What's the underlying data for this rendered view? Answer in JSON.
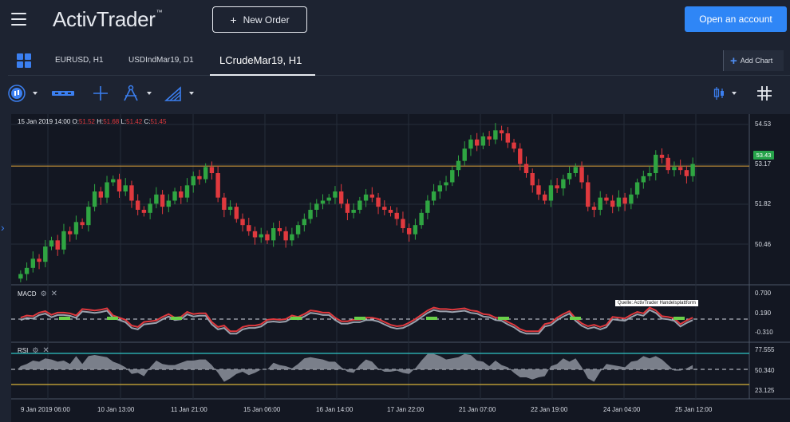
{
  "header": {
    "logo_text": "ActivTrader",
    "logo_mark": "™",
    "new_order_label": "New Order",
    "new_order_icon": "plus-icon",
    "open_account_label": "Open an account"
  },
  "tabs": [
    {
      "label": "EURUSD, H1",
      "active": false
    },
    {
      "label": "USDIndMar19, D1",
      "active": false
    },
    {
      "label": "LCrudeMar19, H1",
      "active": true
    }
  ],
  "add_chart_label": "Add Chart",
  "toolbar": {
    "icons": [
      "candle-type-icon",
      "line-style-icon",
      "crosshair-icon",
      "drawing-pen-icon",
      "fibonacci-icon",
      "candles-icon",
      "grid-layout-icon"
    ]
  },
  "ohlc": {
    "date": "15 Jan 2019 14:00",
    "o_label": "O:",
    "o": "51.52",
    "h_label": "H:",
    "h": "51.68",
    "l_label": "L:",
    "l": "51.42",
    "c_label": "C:",
    "c": "51.45"
  },
  "price_axis": [
    "54.53",
    "53.17",
    "51.82",
    "50.46"
  ],
  "current_price": "53.43",
  "macd": {
    "label": "MACD",
    "axis": [
      "0.700",
      "0.190",
      "-0.310"
    ]
  },
  "rsi": {
    "label": "RSI",
    "axis": [
      "77.555",
      "50.340",
      "23.125"
    ]
  },
  "x_axis": [
    "9 Jan 2019 06:00",
    "10 Jan 13:00",
    "11 Jan 21:00",
    "15 Jan 06:00",
    "16 Jan 14:00",
    "17 Jan 22:00",
    "21 Jan 07:00",
    "22 Jan 19:00",
    "24 Jan 04:00",
    "25 Jan 12:00"
  ],
  "source_tooltip": "Quelle: ActivTrader Handelsplattform",
  "colors": {
    "up": "#2fa542",
    "down": "#e0393e",
    "price_line": "#c9953a",
    "rsi_upper": "#2fc6c6",
    "rsi_lower": "#d7b23a",
    "accent": "#2f86f6"
  },
  "chart_data": {
    "type": "candlestick",
    "symbol": "LCrudeMar19, H1",
    "ylim": [
      49.6,
      55.0
    ],
    "current_price": 53.43,
    "closes": [
      49.9,
      50.1,
      50.4,
      50.3,
      50.8,
      51.0,
      50.7,
      51.3,
      51.2,
      51.6,
      51.5,
      52.1,
      52.6,
      52.4,
      52.9,
      53.0,
      52.6,
      52.8,
      52.3,
      52.0,
      51.9,
      52.2,
      52.5,
      52.1,
      52.3,
      52.6,
      52.4,
      52.8,
      53.1,
      53.0,
      53.4,
      53.2,
      52.4,
      52.0,
      52.1,
      51.7,
      51.5,
      51.3,
      51.1,
      51.2,
      51.0,
      51.4,
      51.3,
      51.0,
      51.2,
      51.5,
      51.7,
      52.0,
      52.2,
      52.3,
      52.4,
      52.6,
      52.2,
      51.9,
      52.0,
      52.3,
      52.5,
      52.4,
      52.1,
      52.0,
      51.9,
      51.7,
      51.4,
      51.2,
      51.5,
      51.9,
      52.3,
      52.6,
      52.8,
      52.9,
      53.3,
      53.6,
      54.0,
      54.3,
      54.1,
      54.4,
      54.3,
      54.6,
      54.5,
      54.2,
      54.0,
      53.5,
      53.2,
      52.8,
      52.5,
      52.3,
      52.8,
      52.7,
      53.0,
      53.2,
      53.4,
      52.9,
      52.1,
      52.0,
      52.4,
      52.3,
      52.1,
      52.4,
      52.2,
      52.5,
      52.9,
      53.1,
      53.2,
      53.8,
      53.7,
      53.3,
      53.4,
      53.3,
      53.1,
      53.5
    ]
  }
}
